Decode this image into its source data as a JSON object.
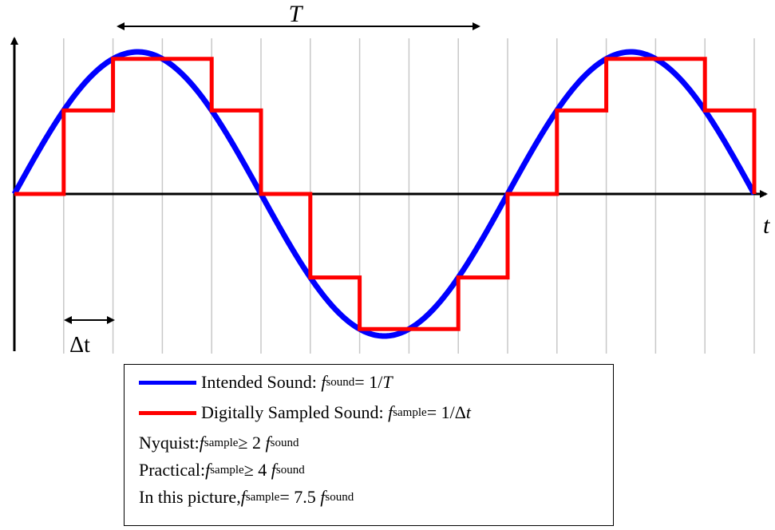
{
  "diagram": {
    "period_label": "T",
    "time_axis_label": "t",
    "delta_t_label": "Δt",
    "colors": {
      "sound": "#0000ff",
      "sampled": "#ff0000",
      "grid": "#c8c8c8",
      "axis": "#000000"
    },
    "signal": {
      "cycles_shown": 1.5,
      "samples_per_period": 7.5,
      "sample_count": 15
    }
  },
  "legend": {
    "intended": {
      "prefix": "Intended Sound: ",
      "f": "f",
      "sub": "sound",
      "rest": " = 1/",
      "T": "T"
    },
    "sampled": {
      "prefix": "Digitally Sampled Sound: ",
      "f": "f",
      "sub": "sample",
      "rest": " = 1/Δ",
      "t": "t"
    },
    "nyquist": {
      "prefix": "Nyquist: ",
      "f1": "f",
      "sub1": "sample",
      "mid": " ≥ 2 ",
      "f2": "f",
      "sub2": "sound"
    },
    "practical": {
      "prefix": "Practical: ",
      "f1": "f",
      "sub1": "sample",
      "mid": " ≥ 4 ",
      "f2": "f",
      "sub2": "sound"
    },
    "picture": {
      "prefix": "In this picture, ",
      "f1": "f",
      "sub1": "sample",
      "mid": " = 7.5 ",
      "f2": "f",
      "sub2": "sound"
    }
  }
}
